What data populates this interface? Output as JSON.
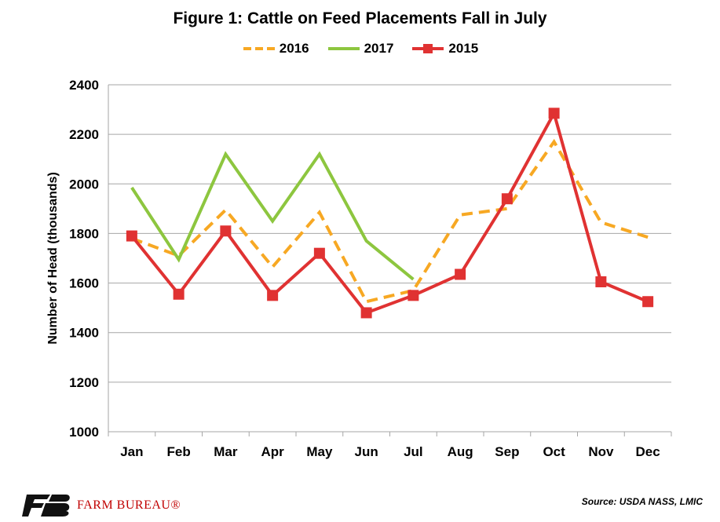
{
  "chart_data": {
    "type": "line",
    "title": "Figure 1: Cattle on Feed Placements Fall in July",
    "xlabel": "",
    "ylabel": "Number of Head (thousands)",
    "categories": [
      "Jan",
      "Feb",
      "Mar",
      "Apr",
      "May",
      "Jun",
      "Jul",
      "Aug",
      "Sep",
      "Oct",
      "Nov",
      "Dec"
    ],
    "ylim": [
      1000,
      2400
    ],
    "yticks": [
      1000,
      1200,
      1400,
      1600,
      1800,
      2000,
      2200,
      2400
    ],
    "grid": true,
    "legend_position": "top",
    "series": [
      {
        "name": "2016",
        "style": "dashed",
        "color": "#f7a823",
        "values": [
          1780,
          1710,
          1895,
          1665,
          1885,
          1525,
          1570,
          1875,
          1900,
          2170,
          1845,
          1785
        ]
      },
      {
        "name": "2017",
        "style": "solid",
        "color": "#8dc63f",
        "values": [
          1985,
          1695,
          2120,
          1850,
          2120,
          1770,
          1615,
          null,
          null,
          null,
          null,
          null
        ]
      },
      {
        "name": "2015",
        "style": "solid-square-markers",
        "color": "#e03232",
        "values": [
          1790,
          1555,
          1810,
          1550,
          1720,
          1480,
          1550,
          1635,
          1940,
          2285,
          1605,
          1525
        ]
      }
    ]
  },
  "source": "Source: USDA  NASS, LMIC",
  "logo_text": "FARM BUREAU®",
  "logo_icon": "farm-bureau-fb-mark"
}
